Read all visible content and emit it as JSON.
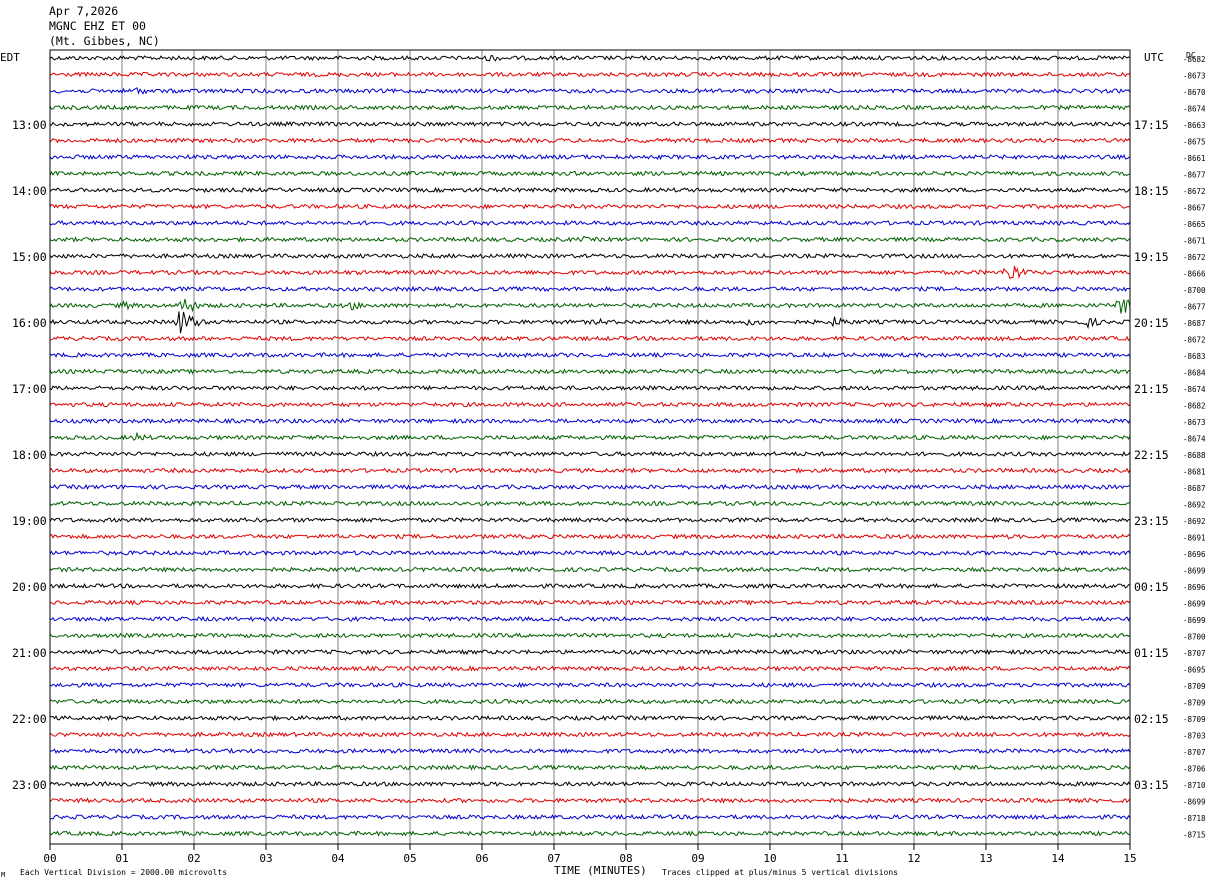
{
  "header": {
    "date": "Apr 7,2026",
    "station": "MGNC EHZ ET 00",
    "location": "(Mt. Gibbes, NC)"
  },
  "chart_data": {
    "type": "line",
    "title": "",
    "left_axis_label": "EDT",
    "right_axis_label": "UTC",
    "dc_label": "DC",
    "xlabel": "TIME (MINUTES)",
    "x_ticks": [
      "00",
      "01",
      "02",
      "03",
      "04",
      "05",
      "06",
      "07",
      "08",
      "09",
      "10",
      "11",
      "12",
      "13",
      "14",
      "15"
    ],
    "xlim": [
      0,
      15
    ],
    "hour_labels_left": [
      "13:00",
      "14:00",
      "15:00",
      "16:00",
      "17:00",
      "18:00",
      "19:00",
      "20:00",
      "21:00",
      "22:00",
      "23:00"
    ],
    "hour_labels_right": [
      "17:15",
      "18:15",
      "19:15",
      "20:15",
      "21:15",
      "22:15",
      "23:15",
      "00:15",
      "01:15",
      "02:15",
      "03:15"
    ],
    "trace_colors": [
      "#000000",
      "#e00000",
      "#0000d0",
      "#006000"
    ],
    "dc_offsets": [
      "-8682",
      "-8673",
      "-8670",
      "-8674",
      "-8663",
      "-8675",
      "-8661",
      "-8677",
      "-8672",
      "-8667",
      "-8665",
      "-8671",
      "-8672",
      "-8666",
      "-8700",
      "-8677",
      "-8687",
      "-8672",
      "-8683",
      "-8684",
      "-8674",
      "-8682",
      "-8673",
      "-8674",
      "-8688",
      "-8681",
      "-8687",
      "-8692",
      "-8692",
      "-8691",
      "-8696",
      "-8699",
      "-8696",
      "-8699",
      "-8699",
      "-8700",
      "-8707",
      "-8695",
      "-8709",
      "-8709",
      "-8709",
      "-8703",
      "-8707",
      "-8706",
      "-8710",
      "-8699",
      "-8718",
      "-8715"
    ],
    "events": [
      {
        "row": 0,
        "minute": 6.1,
        "amp": 5,
        "dur": 0.45
      },
      {
        "row": 2,
        "minute": 1.2,
        "amp": 5,
        "dur": 0.4
      },
      {
        "row": 2,
        "minute": 9.2,
        "amp": 4,
        "dur": 0.5
      },
      {
        "row": 4,
        "minute": 1.3,
        "amp": 2.5,
        "dur": 0.3
      },
      {
        "row": 8,
        "minute": 11.6,
        "amp": 3,
        "dur": 0.4
      },
      {
        "row": 11,
        "minute": 7.4,
        "amp": 3.5,
        "dur": 0.3
      },
      {
        "row": 13,
        "minute": 6.95,
        "amp": 4,
        "dur": 0.3
      },
      {
        "row": 13,
        "minute": 12.9,
        "amp": 3,
        "dur": 0.2
      },
      {
        "row": 13,
        "minute": 13.3,
        "amp": 14,
        "dur": 0.4
      },
      {
        "row": 14,
        "minute": 13.1,
        "amp": 3.5,
        "dur": 0.3
      },
      {
        "row": 14,
        "minute": 14.0,
        "amp": 3,
        "dur": 0.25
      },
      {
        "row": 15,
        "minute": 1.0,
        "amp": 5,
        "dur": 0.55
      },
      {
        "row": 15,
        "minute": 1.85,
        "amp": 14,
        "dur": 0.3
      },
      {
        "row": 15,
        "minute": 4.2,
        "amp": 5,
        "dur": 0.45
      },
      {
        "row": 15,
        "minute": 14.85,
        "amp": 14,
        "dur": 0.3
      },
      {
        "row": 16,
        "minute": 1.8,
        "amp": 15,
        "dur": 0.45
      },
      {
        "row": 16,
        "minute": 7.6,
        "amp": 4,
        "dur": 0.5
      },
      {
        "row": 16,
        "minute": 9.7,
        "amp": 4,
        "dur": 0.8
      },
      {
        "row": 16,
        "minute": 10.9,
        "amp": 6,
        "dur": 0.55
      },
      {
        "row": 16,
        "minute": 14.4,
        "amp": 6,
        "dur": 0.5
      },
      {
        "row": 19,
        "minute": 8.5,
        "amp": 4,
        "dur": 0.3
      },
      {
        "row": 22,
        "minute": 9.8,
        "amp": 2.5,
        "dur": 0.2
      },
      {
        "row": 23,
        "minute": 1.2,
        "amp": 5,
        "dur": 0.55
      },
      {
        "row": 29,
        "minute": 13.3,
        "amp": 3,
        "dur": 0.2
      },
      {
        "row": 41,
        "minute": 13.1,
        "amp": 3,
        "dur": 0.3
      }
    ]
  },
  "footer": {
    "scale_note": "Each Vertical Division = 2000.00 microvolts",
    "clip_note": "Traces clipped at plus/minus 5 vertical divisions",
    "logo_glyph": "M"
  }
}
